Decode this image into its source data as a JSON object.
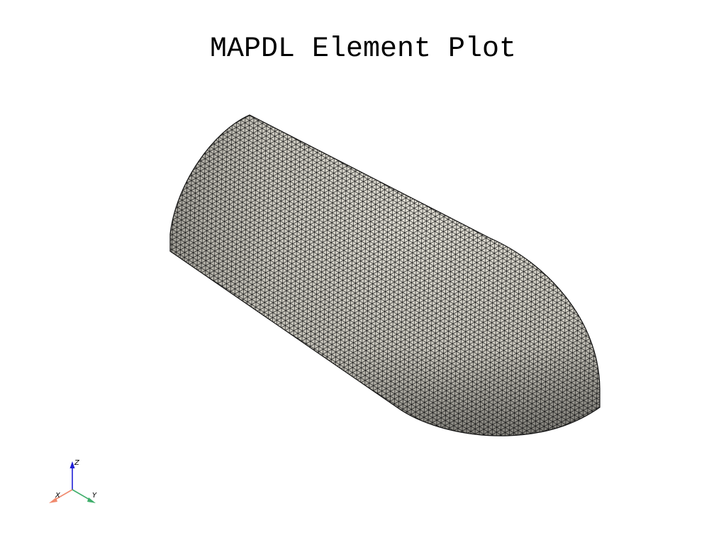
{
  "title": "MAPDL Element Plot",
  "mesh": {
    "surface_color": "#dad7cc",
    "edge_color": "#000000",
    "element_shape": "triangle"
  },
  "axes_triad": {
    "z_label": "Z",
    "x_label": "X",
    "y_label": "Y",
    "z_color": "#1f1fd6",
    "x_color": "#f08a6e",
    "y_color": "#3fae6b"
  }
}
